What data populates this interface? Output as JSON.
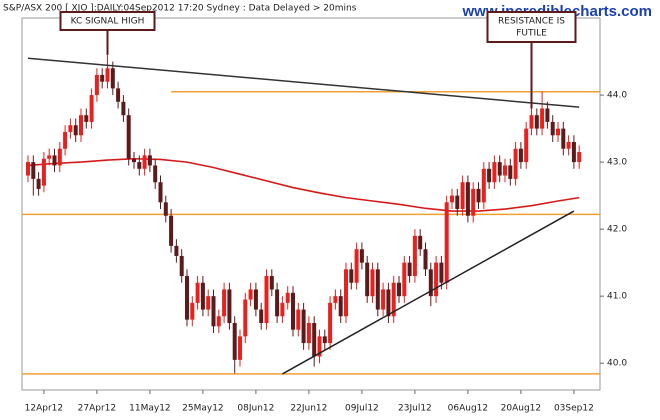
{
  "chart_data": {
    "type": "candlestick",
    "title": "S&P/ASX 200 [ XJO ]:DAILY:04Sep2012 17:20 Sydney : Data Delayed > 20mins",
    "watermark": "www.incrediblecharts.com",
    "categories": [
      null,
      null,
      null,
      "12Apr12",
      null,
      null,
      null,
      null,
      null,
      null,
      null,
      null,
      null,
      "27Apr12",
      null,
      null,
      null,
      null,
      null,
      null,
      null,
      null,
      null,
      "11May12",
      null,
      null,
      null,
      null,
      null,
      null,
      null,
      null,
      null,
      "25May12",
      null,
      null,
      null,
      null,
      null,
      null,
      null,
      null,
      null,
      "08Jun12",
      null,
      null,
      null,
      null,
      null,
      null,
      null,
      null,
      null,
      "22Jun12",
      null,
      null,
      null,
      null,
      null,
      null,
      null,
      null,
      null,
      "09Jul12",
      null,
      null,
      null,
      null,
      null,
      null,
      null,
      null,
      null,
      "23Jul12",
      null,
      null,
      null,
      null,
      null,
      null,
      null,
      null,
      null,
      "06Aug12",
      null,
      null,
      null,
      null,
      null,
      null,
      null,
      null,
      null,
      "20Aug12",
      null,
      null,
      null,
      null,
      null,
      null,
      null,
      null,
      null,
      "03Sep12",
      null
    ],
    "open": [
      42.8,
      43.0,
      42.75,
      42.65,
      43.05,
      43.1,
      42.95,
      43.2,
      43.45,
      43.55,
      43.4,
      43.7,
      43.6,
      44.0,
      44.3,
      44.2,
      44.4,
      44.1,
      43.9,
      43.7,
      43.05,
      43.0,
      42.9,
      43.1,
      42.95,
      42.7,
      42.4,
      42.2,
      41.75,
      41.6,
      41.3,
      40.65,
      40.9,
      41.2,
      40.8,
      41.0,
      40.55,
      40.7,
      41.1,
      40.6,
      40.05,
      40.4,
      40.95,
      41.1,
      40.8,
      40.6,
      41.3,
      41.1,
      40.7,
      40.9,
      41.05,
      40.5,
      40.8,
      40.3,
      40.6,
      40.1,
      40.4,
      40.3,
      40.9,
      41.0,
      40.7,
      41.4,
      41.2,
      41.7,
      41.5,
      41.0,
      41.4,
      40.8,
      41.1,
      40.7,
      41.2,
      41.0,
      41.5,
      41.3,
      41.9,
      41.7,
      41.4,
      41.0,
      41.5,
      41.2,
      42.4,
      42.5,
      42.3,
      42.7,
      42.2,
      42.6,
      42.4,
      42.9,
      42.7,
      43.0,
      42.8,
      42.95,
      42.75,
      43.2,
      43.0,
      43.5,
      43.7,
      43.5,
      43.8,
      43.6,
      43.4,
      43.5,
      43.2,
      43.3,
      43.0
    ],
    "high": [
      43.1,
      43.1,
      42.85,
      43.15,
      43.2,
      43.2,
      43.3,
      43.55,
      43.65,
      43.65,
      43.8,
      43.8,
      44.1,
      44.4,
      44.4,
      44.6,
      44.5,
      44.2,
      44.0,
      43.8,
      43.15,
      43.1,
      43.2,
      43.2,
      43.05,
      42.8,
      42.5,
      42.3,
      41.85,
      41.7,
      41.4,
      41.0,
      41.3,
      41.3,
      41.1,
      41.1,
      40.8,
      41.2,
      41.2,
      40.7,
      40.5,
      41.05,
      41.2,
      41.2,
      40.9,
      41.4,
      41.4,
      41.2,
      41.0,
      41.15,
      41.15,
      40.9,
      40.9,
      40.7,
      40.7,
      40.5,
      40.5,
      41.0,
      41.1,
      41.1,
      41.5,
      41.5,
      41.8,
      41.8,
      41.6,
      41.5,
      41.5,
      41.2,
      41.2,
      41.3,
      41.3,
      41.6,
      41.6,
      42.0,
      42.0,
      41.8,
      41.5,
      41.6,
      41.6,
      42.5,
      42.6,
      42.6,
      42.8,
      42.8,
      42.7,
      42.7,
      43.0,
      43.0,
      43.1,
      43.1,
      43.05,
      43.05,
      43.3,
      43.3,
      43.6,
      43.8,
      43.8,
      44.05,
      43.9,
      43.7,
      43.6,
      43.6,
      43.4,
      43.4,
      43.25
    ],
    "low": [
      42.7,
      42.5,
      42.5,
      42.55,
      42.95,
      42.85,
      42.85,
      43.1,
      43.35,
      43.3,
      43.3,
      43.5,
      43.5,
      43.9,
      44.1,
      44.1,
      44.0,
      43.8,
      43.6,
      42.95,
      42.9,
      42.8,
      42.8,
      42.85,
      42.6,
      42.3,
      42.1,
      41.65,
      41.5,
      41.2,
      40.55,
      40.55,
      40.8,
      40.7,
      40.7,
      40.45,
      40.45,
      40.6,
      40.5,
      39.85,
      39.95,
      40.3,
      40.85,
      40.7,
      40.5,
      40.5,
      41.0,
      40.6,
      40.6,
      40.8,
      40.4,
      40.4,
      40.2,
      40.2,
      39.95,
      40.0,
      40.2,
      40.2,
      40.8,
      40.6,
      40.6,
      41.1,
      41.1,
      41.4,
      40.9,
      40.9,
      40.7,
      40.7,
      40.6,
      40.6,
      40.9,
      40.9,
      41.2,
      41.2,
      41.6,
      41.3,
      40.85,
      40.9,
      41.1,
      41.1,
      42.3,
      42.2,
      42.2,
      42.1,
      42.1,
      42.3,
      42.3,
      42.6,
      42.6,
      42.7,
      42.7,
      42.65,
      42.65,
      42.9,
      42.9,
      43.4,
      43.4,
      43.4,
      43.5,
      43.3,
      43.3,
      43.1,
      43.1,
      42.9,
      42.9
    ],
    "close": [
      43.0,
      42.75,
      42.6,
      43.05,
      43.1,
      42.95,
      43.2,
      43.45,
      43.55,
      43.4,
      43.7,
      43.6,
      44.0,
      44.3,
      44.2,
      44.4,
      44.1,
      43.9,
      43.7,
      43.05,
      43.0,
      42.9,
      43.1,
      42.95,
      42.7,
      42.4,
      42.2,
      41.75,
      41.6,
      41.3,
      40.65,
      40.9,
      41.2,
      40.8,
      41.0,
      40.55,
      40.7,
      41.1,
      40.6,
      40.05,
      40.4,
      40.95,
      41.1,
      40.8,
      40.6,
      41.3,
      41.1,
      40.7,
      40.9,
      41.05,
      40.5,
      40.8,
      40.3,
      40.6,
      40.1,
      40.4,
      40.3,
      40.9,
      41.0,
      40.7,
      41.4,
      41.2,
      41.7,
      41.5,
      41.0,
      41.4,
      40.8,
      41.1,
      40.7,
      41.2,
      41.0,
      41.5,
      41.3,
      41.9,
      41.7,
      41.4,
      41.0,
      41.5,
      41.2,
      42.4,
      42.5,
      42.3,
      42.7,
      42.2,
      42.6,
      42.4,
      42.9,
      42.7,
      43.0,
      42.8,
      42.95,
      42.75,
      43.2,
      43.0,
      43.5,
      43.7,
      43.5,
      43.8,
      43.6,
      43.4,
      43.5,
      43.2,
      43.3,
      43.0,
      43.15
    ],
    "up_color": "#e8201e",
    "down_color": "#5c1a1a",
    "moving_average": {
      "color": "#d61a1a",
      "x": [
        0,
        5,
        10,
        15,
        20,
        25,
        30,
        35,
        40,
        45,
        50,
        55,
        60,
        65,
        70,
        75,
        80,
        85,
        90,
        95,
        100,
        104
      ],
      "values": [
        42.95,
        42.98,
        43.0,
        43.03,
        43.05,
        43.04,
        43.0,
        42.92,
        42.82,
        42.72,
        42.62,
        42.54,
        42.47,
        42.42,
        42.37,
        42.31,
        42.27,
        42.27,
        42.3,
        42.35,
        42.42,
        42.47
      ]
    },
    "trend_lines": [
      {
        "x": [
          0,
          104
        ],
        "y": [
          44.55,
          43.82
        ],
        "color": "#333333"
      },
      {
        "x": [
          48,
          103
        ],
        "y": [
          39.84,
          42.27
        ],
        "color": "#222222"
      }
    ],
    "horizontal_lines": [
      {
        "y": 44.05,
        "from": 27,
        "color": "#f0a030"
      },
      {
        "y": 42.22,
        "color": "#f0a030"
      },
      {
        "y": 39.84,
        "color": "#f0a030"
      }
    ],
    "annotations": [
      {
        "text": [
          "KC SIGNAL HIGH"
        ],
        "x": 15
      },
      {
        "text": [
          "RESISTANCE IS",
          "FUTILE"
        ],
        "x": 95
      }
    ],
    "ylim": [
      39.6,
      45.15
    ],
    "yticks": [
      {
        "value": 40,
        "label": "40.0"
      },
      {
        "value": 41,
        "label": "41.0"
      },
      {
        "value": 42,
        "label": "42.0"
      },
      {
        "value": 43,
        "label": "43.0"
      },
      {
        "value": 44,
        "label": "44.0"
      }
    ]
  }
}
